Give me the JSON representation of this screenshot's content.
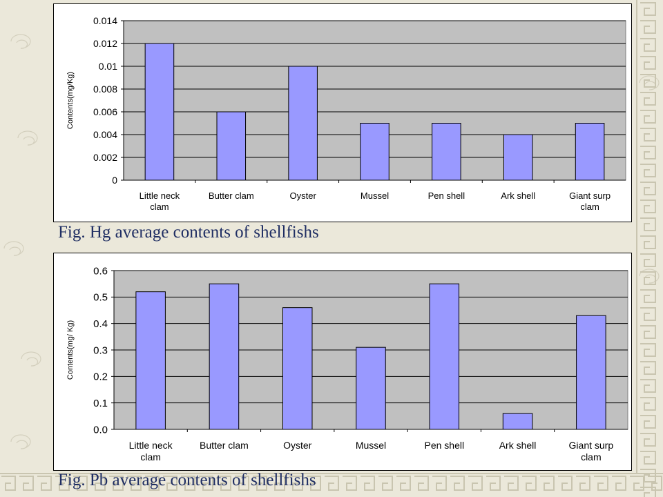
{
  "slide": {
    "background_color": "#ebe8da",
    "pattern_color": "#c9c5b0",
    "caption_color": "#1f2e63"
  },
  "captions": {
    "hg": "Fig. Hg average contents of shellfishs",
    "pb": "Fig. Pb average contents of shellfishs"
  },
  "chart_data": [
    {
      "type": "bar",
      "title": "",
      "xlabel": "",
      "ylabel": "Contents(mg/Kg)",
      "categories": [
        [
          "Little neck",
          "clam"
        ],
        [
          "Butter clam"
        ],
        [
          "Oyster"
        ],
        [
          "Mussel"
        ],
        [
          "Pen shell"
        ],
        [
          "Ark shell"
        ],
        [
          "Giant surp",
          "clam"
        ]
      ],
      "values": [
        0.012,
        0.006,
        0.01,
        0.005,
        0.005,
        0.004,
        0.005
      ],
      "yticks": [
        "0",
        "0.002",
        "0.004",
        "0.006",
        "0.008",
        "0.01",
        "0.012",
        "0.014"
      ],
      "ylim": [
        0,
        0.014
      ],
      "grid": true,
      "bar_color": "#9999ff",
      "plot_bg": "#c0c0c0"
    },
    {
      "type": "bar",
      "title": "",
      "xlabel": "",
      "ylabel": "Contents(mg/ Kg)",
      "categories": [
        [
          "Little neck",
          "clam"
        ],
        [
          "Butter clam"
        ],
        [
          "Oyster"
        ],
        [
          "Mussel"
        ],
        [
          "Pen shell"
        ],
        [
          "Ark shell"
        ],
        [
          "Giant surp",
          "clam"
        ]
      ],
      "values": [
        0.52,
        0.55,
        0.46,
        0.31,
        0.55,
        0.06,
        0.43
      ],
      "yticks": [
        "0.0",
        "0.1",
        "0.2",
        "0.3",
        "0.4",
        "0.5",
        "0.6"
      ],
      "ylim": [
        0,
        0.6
      ],
      "grid": true,
      "bar_color": "#9999ff",
      "plot_bg": "#c0c0c0"
    }
  ]
}
